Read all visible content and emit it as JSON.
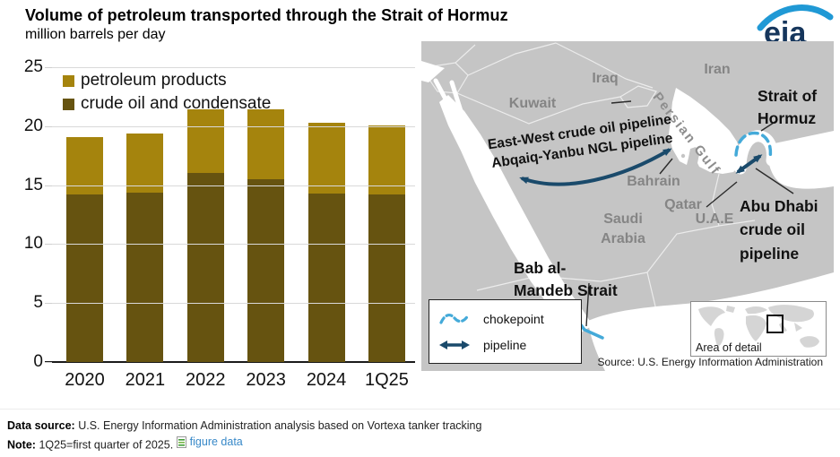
{
  "header": {
    "title": "Volume of petroleum transported through the Strait of Hormuz",
    "subtitle": "million barrels per day"
  },
  "logo": {
    "text": "eia"
  },
  "chart_data": {
    "type": "bar",
    "stacked": true,
    "categories": [
      "2020",
      "2021",
      "2022",
      "2023",
      "2024",
      "1Q25"
    ],
    "series": [
      {
        "name": "petroleum products",
        "color": "#a5840d",
        "stack_position": "top",
        "values": [
          4.9,
          5.0,
          5.4,
          5.9,
          6.0,
          5.9
        ]
      },
      {
        "name": "crude oil and condensate",
        "color": "#665310",
        "stack_position": "bottom",
        "values": [
          14.2,
          14.4,
          16.0,
          15.5,
          14.3,
          14.2
        ]
      }
    ],
    "totals": [
      19.1,
      19.4,
      21.4,
      21.4,
      20.3,
      20.1
    ],
    "title": "Volume of petroleum transported through the Strait of Hormuz",
    "xlabel": "",
    "ylabel": "million barrels per day",
    "ylim": [
      0,
      25
    ],
    "yticks": [
      0,
      5,
      10,
      15,
      20,
      25
    ],
    "grid": "horizontal",
    "legend_position": "top-left"
  },
  "map": {
    "countries": {
      "iraq": "Iraq",
      "iran": "Iran",
      "kuwait": "Kuwait",
      "bahrain": "Bahrain",
      "qatar": "Qatar",
      "uae": "U.A.E",
      "saudi_line1": "Saudi",
      "saudi_line2": "Arabia"
    },
    "water": {
      "persian_gulf": "Persian Gulf"
    },
    "annotations": {
      "strait": [
        "Strait of",
        "Hormuz"
      ],
      "abu_dhabi": [
        "Abu Dhabi",
        "crude oil",
        "pipeline"
      ],
      "bab": [
        "Bab al-",
        "Mandeb Strait"
      ],
      "pipelines": [
        "East-West crude oil pipeline",
        "Abqaiq-Yanbu NGL pipeline"
      ]
    },
    "legend": {
      "chokepoint": "chokepoint",
      "pipeline": "pipeline"
    },
    "inset_label": "Area of detail",
    "source": "Source: U.S. Energy Information Administration"
  },
  "footer": {
    "data_source_label": "Data source:",
    "data_source_text": "U.S. Energy Information Administration analysis based on Vortexa tanker tracking",
    "note_label": "Note:",
    "note_text": "1Q25=first quarter of 2025.",
    "figure_data_link": "figure data"
  },
  "colors": {
    "gold": "#a5840d",
    "olive": "#665310",
    "navy": "#1a4a6b",
    "light_blue": "#44aad9",
    "land": "#c5c5c5",
    "label_gray": "#858585",
    "link_blue": "#3788c8",
    "logo_navy": "#16365c",
    "logo_blue": "#2099d5",
    "grid": "#d9d9d9"
  }
}
